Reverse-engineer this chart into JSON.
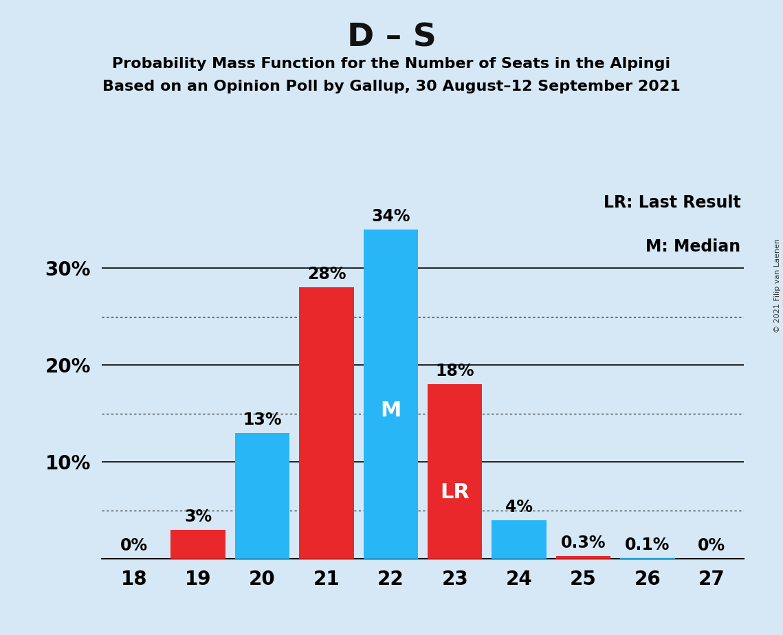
{
  "title": "D – S",
  "subtitle1": "Probability Mass Function for the Number of Seats in the Alpingi",
  "subtitle2": "Based on an Opinion Poll by Gallup, 30 August–12 September 2021",
  "copyright": "© 2021 Filip van Laenen",
  "seats": [
    18,
    19,
    20,
    21,
    22,
    23,
    24,
    25,
    26,
    27
  ],
  "pmf_values": [
    0.0,
    3.0,
    13.0,
    28.0,
    34.0,
    18.0,
    4.0,
    0.3,
    0.1,
    0.0
  ],
  "pmf_labels": [
    "0%",
    "3%",
    "13%",
    "28%",
    "34%",
    "18%",
    "4%",
    "0.3%",
    "0.1%",
    "0%"
  ],
  "bar_colors": [
    "#E8282A",
    "#E8282A",
    "#29B6F6",
    "#E8282A",
    "#29B6F6",
    "#E8282A",
    "#29B6F6",
    "#E8282A",
    "#29B6F6",
    "#29B6F6"
  ],
  "median_seat": 22,
  "lr_seat": 23,
  "median_label": "M",
  "lr_label": "LR",
  "legend_text1": "LR: Last Result",
  "legend_text2": "M: Median",
  "background_color": "#D6E8F5",
  "bar_color_red": "#E8282A",
  "bar_color_blue": "#29B6F6",
  "ylim_max": 38,
  "solid_yticks": [
    10,
    20,
    30
  ],
  "dotted_yticks": [
    5,
    15,
    25
  ],
  "title_fontsize": 34,
  "subtitle_fontsize": 16,
  "tick_fontsize": 20,
  "legend_fontsize": 17,
  "bar_label_fontsize": 17,
  "inner_label_fontsize": 22
}
